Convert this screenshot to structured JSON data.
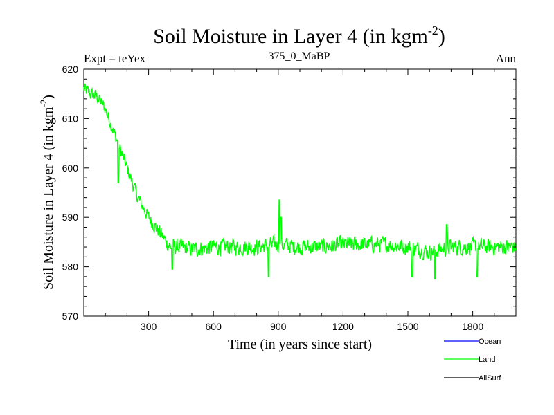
{
  "chart_data": {
    "type": "line",
    "title": "Soil Moisture in Layer 4 (in kgm",
    "title_sup": "-2",
    "title_close": ")",
    "left_label": "Expt = teYex",
    "center_label": "375_0_MaBP",
    "right_label": "Ann",
    "xlabel": "Time (in years since start)",
    "ylabel": "Soil Moisture in Layer 4 (in kgm",
    "ylabel_sup": "-2",
    "ylabel_close": ")",
    "xlim": [
      0,
      2000
    ],
    "ylim": [
      570,
      620
    ],
    "xticks": [
      300,
      600,
      900,
      1200,
      1500,
      1800
    ],
    "yticks": [
      570,
      580,
      590,
      600,
      610,
      620
    ],
    "series": [
      {
        "name": "Ocean",
        "color": "#0000ff",
        "values": []
      },
      {
        "name": "AllSurf",
        "color": "#000000",
        "values": []
      },
      {
        "name": "Land",
        "color": "#00ff00",
        "keypoints": [
          [
            0,
            616
          ],
          [
            30,
            615
          ],
          [
            60,
            614.5
          ],
          [
            100,
            612
          ],
          [
            150,
            606
          ],
          [
            200,
            600
          ],
          [
            250,
            594
          ],
          [
            300,
            590
          ],
          [
            350,
            587
          ],
          [
            400,
            584
          ],
          [
            450,
            584
          ],
          [
            500,
            583.5
          ],
          [
            600,
            584
          ],
          [
            700,
            584
          ],
          [
            800,
            584
          ],
          [
            900,
            584.5
          ],
          [
            1000,
            584
          ],
          [
            1100,
            584
          ],
          [
            1200,
            584.5
          ],
          [
            1300,
            584.5
          ],
          [
            1400,
            584.5
          ],
          [
            1500,
            584
          ],
          [
            1600,
            583
          ],
          [
            1700,
            584
          ],
          [
            1800,
            584
          ],
          [
            1900,
            584
          ],
          [
            2000,
            584
          ]
        ],
        "noise_amplitude": 2.2,
        "spikes": [
          [
            905,
            593.5
          ],
          [
            912,
            590
          ],
          [
            160,
            597
          ],
          [
            1680,
            588.5
          ]
        ],
        "dips": [
          [
            1520,
            578
          ],
          [
            1625,
            577.5
          ],
          [
            1820,
            578
          ],
          [
            855,
            578
          ],
          [
            410,
            579.5
          ]
        ]
      }
    ]
  },
  "legend": [
    {
      "name": "Ocean",
      "color": "#0000ff"
    },
    {
      "name": "Land",
      "color": "#00ff00"
    },
    {
      "name": "AllSurf",
      "color": "#000000"
    }
  ]
}
